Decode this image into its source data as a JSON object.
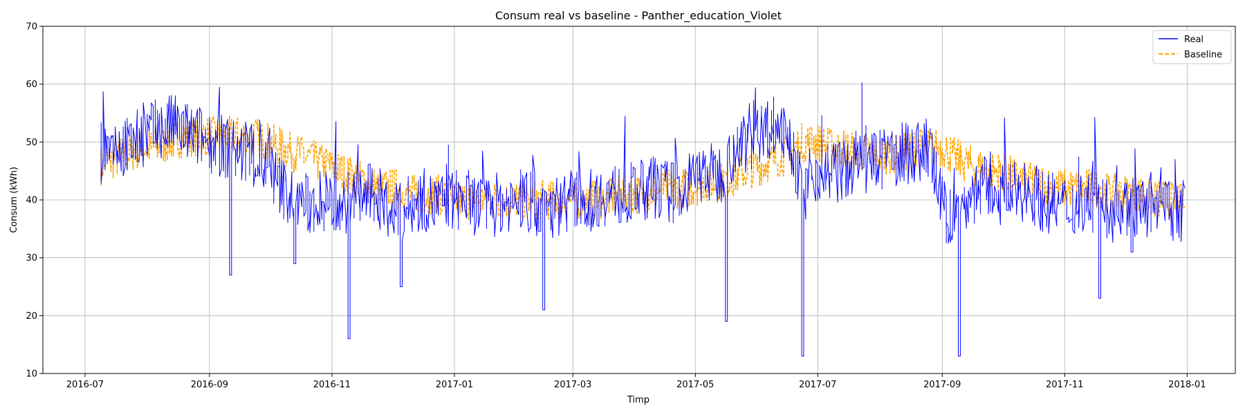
{
  "chart_data": {
    "type": "line",
    "title": "Consum real vs baseline - Panther_education_Violet",
    "xlabel": "Timp",
    "ylabel": "Consum (kWh)",
    "xlim": [
      "2016-06-10",
      "2018-01-25"
    ],
    "ylim": [
      10,
      70
    ],
    "grid": true,
    "legend_position": "top-right",
    "x_ticks": [
      "2016-07",
      "2016-09",
      "2016-11",
      "2017-01",
      "2017-03",
      "2017-05",
      "2017-07",
      "2017-09",
      "2017-11",
      "2018-01"
    ],
    "y_ticks": [
      10,
      20,
      30,
      40,
      50,
      60,
      70
    ],
    "series": [
      {
        "name": "Real",
        "color": "#0000ff",
        "style": "solid",
        "x": [
          "2016-07-09",
          "2016-07-16",
          "2016-07-23",
          "2016-07-30",
          "2016-08-06",
          "2016-08-13",
          "2016-08-20",
          "2016-08-27",
          "2016-09-03",
          "2016-09-10",
          "2016-09-17",
          "2016-09-24",
          "2016-10-01",
          "2016-10-08",
          "2016-10-15",
          "2016-10-22",
          "2016-10-29",
          "2016-11-05",
          "2016-11-12",
          "2016-11-19",
          "2016-11-26",
          "2016-12-03",
          "2016-12-10",
          "2016-12-17",
          "2016-12-24",
          "2016-12-31",
          "2017-01-07",
          "2017-01-14",
          "2017-01-21",
          "2017-01-28",
          "2017-02-04",
          "2017-02-11",
          "2017-02-18",
          "2017-02-25",
          "2017-03-04",
          "2017-03-11",
          "2017-03-18",
          "2017-03-25",
          "2017-04-01",
          "2017-04-08",
          "2017-04-15",
          "2017-04-22",
          "2017-04-29",
          "2017-05-06",
          "2017-05-13",
          "2017-05-20",
          "2017-05-27",
          "2017-06-03",
          "2017-06-10",
          "2017-06-17",
          "2017-06-24",
          "2017-07-01",
          "2017-07-08",
          "2017-07-15",
          "2017-07-22",
          "2017-07-29",
          "2017-08-05",
          "2017-08-12",
          "2017-08-19",
          "2017-08-26",
          "2017-09-02",
          "2017-09-09",
          "2017-09-16",
          "2017-09-23",
          "2017-09-30",
          "2017-10-07",
          "2017-10-14",
          "2017-10-21",
          "2017-10-28",
          "2017-11-04",
          "2017-11-11",
          "2017-11-18",
          "2017-11-25",
          "2017-12-02",
          "2017-12-09",
          "2017-12-16",
          "2017-12-23",
          "2017-12-31"
        ],
        "y": [
          48,
          50,
          49,
          51,
          52,
          53,
          52,
          51,
          50,
          49,
          48,
          47,
          45,
          42,
          40,
          39,
          40,
          39,
          40,
          41,
          40,
          37,
          39,
          40,
          39,
          40,
          40,
          39,
          39,
          40,
          40,
          39,
          38,
          40,
          40,
          40,
          41,
          41,
          41,
          42,
          42,
          41,
          43,
          45,
          44,
          48,
          50,
          52,
          53,
          52,
          40,
          45,
          45,
          45,
          47,
          46,
          47,
          48,
          48,
          49,
          38,
          37,
          41,
          42,
          41,
          41,
          42,
          40,
          39,
          39,
          40,
          39,
          38,
          39,
          39,
          38,
          38,
          38
        ]
      },
      {
        "name": "Baseline",
        "color": "#ffa500",
        "style": "dashed",
        "x": [
          "2016-07-09",
          "2016-07-16",
          "2016-07-23",
          "2016-07-30",
          "2016-08-06",
          "2016-08-13",
          "2016-08-20",
          "2016-08-27",
          "2016-09-03",
          "2016-09-10",
          "2016-09-17",
          "2016-09-24",
          "2016-10-01",
          "2016-10-08",
          "2016-10-15",
          "2016-10-22",
          "2016-10-29",
          "2016-11-05",
          "2016-11-12",
          "2016-11-19",
          "2016-11-26",
          "2016-12-03",
          "2016-12-10",
          "2016-12-17",
          "2016-12-24",
          "2016-12-31",
          "2017-01-07",
          "2017-01-14",
          "2017-01-21",
          "2017-01-28",
          "2017-02-04",
          "2017-02-11",
          "2017-02-18",
          "2017-02-25",
          "2017-03-04",
          "2017-03-11",
          "2017-03-18",
          "2017-03-25",
          "2017-04-01",
          "2017-04-08",
          "2017-04-15",
          "2017-04-22",
          "2017-04-29",
          "2017-05-06",
          "2017-05-13",
          "2017-05-20",
          "2017-05-27",
          "2017-06-03",
          "2017-06-10",
          "2017-06-17",
          "2017-06-24",
          "2017-07-01",
          "2017-07-08",
          "2017-07-15",
          "2017-07-22",
          "2017-07-29",
          "2017-08-05",
          "2017-08-12",
          "2017-08-19",
          "2017-08-26",
          "2017-09-02",
          "2017-09-09",
          "2017-09-16",
          "2017-09-23",
          "2017-09-30",
          "2017-10-07",
          "2017-10-14",
          "2017-10-21",
          "2017-10-28",
          "2017-11-04",
          "2017-11-11",
          "2017-11-18",
          "2017-11-25",
          "2017-12-02",
          "2017-12-09",
          "2017-12-16",
          "2017-12-23",
          "2017-12-31"
        ],
        "y": [
          46,
          47,
          48,
          49,
          49,
          50,
          51,
          51,
          51,
          51,
          51,
          51,
          50,
          49,
          48,
          47,
          46,
          45,
          44,
          43,
          42,
          42,
          41,
          41,
          41,
          40,
          40,
          40,
          40,
          40,
          40,
          40,
          40,
          40,
          40,
          40,
          40,
          41,
          41,
          41,
          42,
          42,
          42,
          43,
          43,
          44,
          45,
          46,
          47,
          48,
          50,
          50,
          49,
          49,
          48,
          48,
          48,
          48,
          49,
          49,
          49,
          47,
          46,
          45,
          45,
          44,
          43,
          43,
          42,
          42,
          42,
          42,
          41,
          41,
          41,
          40,
          40,
          39
        ]
      }
    ],
    "outliers": [
      {
        "series": "Real",
        "x": "2016-09-12",
        "y": 27
      },
      {
        "series": "Real",
        "x": "2016-10-14",
        "y": 29
      },
      {
        "series": "Real",
        "x": "2016-11-10",
        "y": 16
      },
      {
        "series": "Real",
        "x": "2016-12-06",
        "y": 25
      },
      {
        "series": "Real",
        "x": "2017-02-15",
        "y": 21
      },
      {
        "series": "Real",
        "x": "2017-05-17",
        "y": 19
      },
      {
        "series": "Real",
        "x": "2017-06-24",
        "y": 13
      },
      {
        "series": "Real",
        "x": "2017-09-10",
        "y": 13
      },
      {
        "series": "Real",
        "x": "2017-11-19",
        "y": 23
      },
      {
        "series": "Real",
        "x": "2017-12-05",
        "y": 31
      }
    ]
  }
}
